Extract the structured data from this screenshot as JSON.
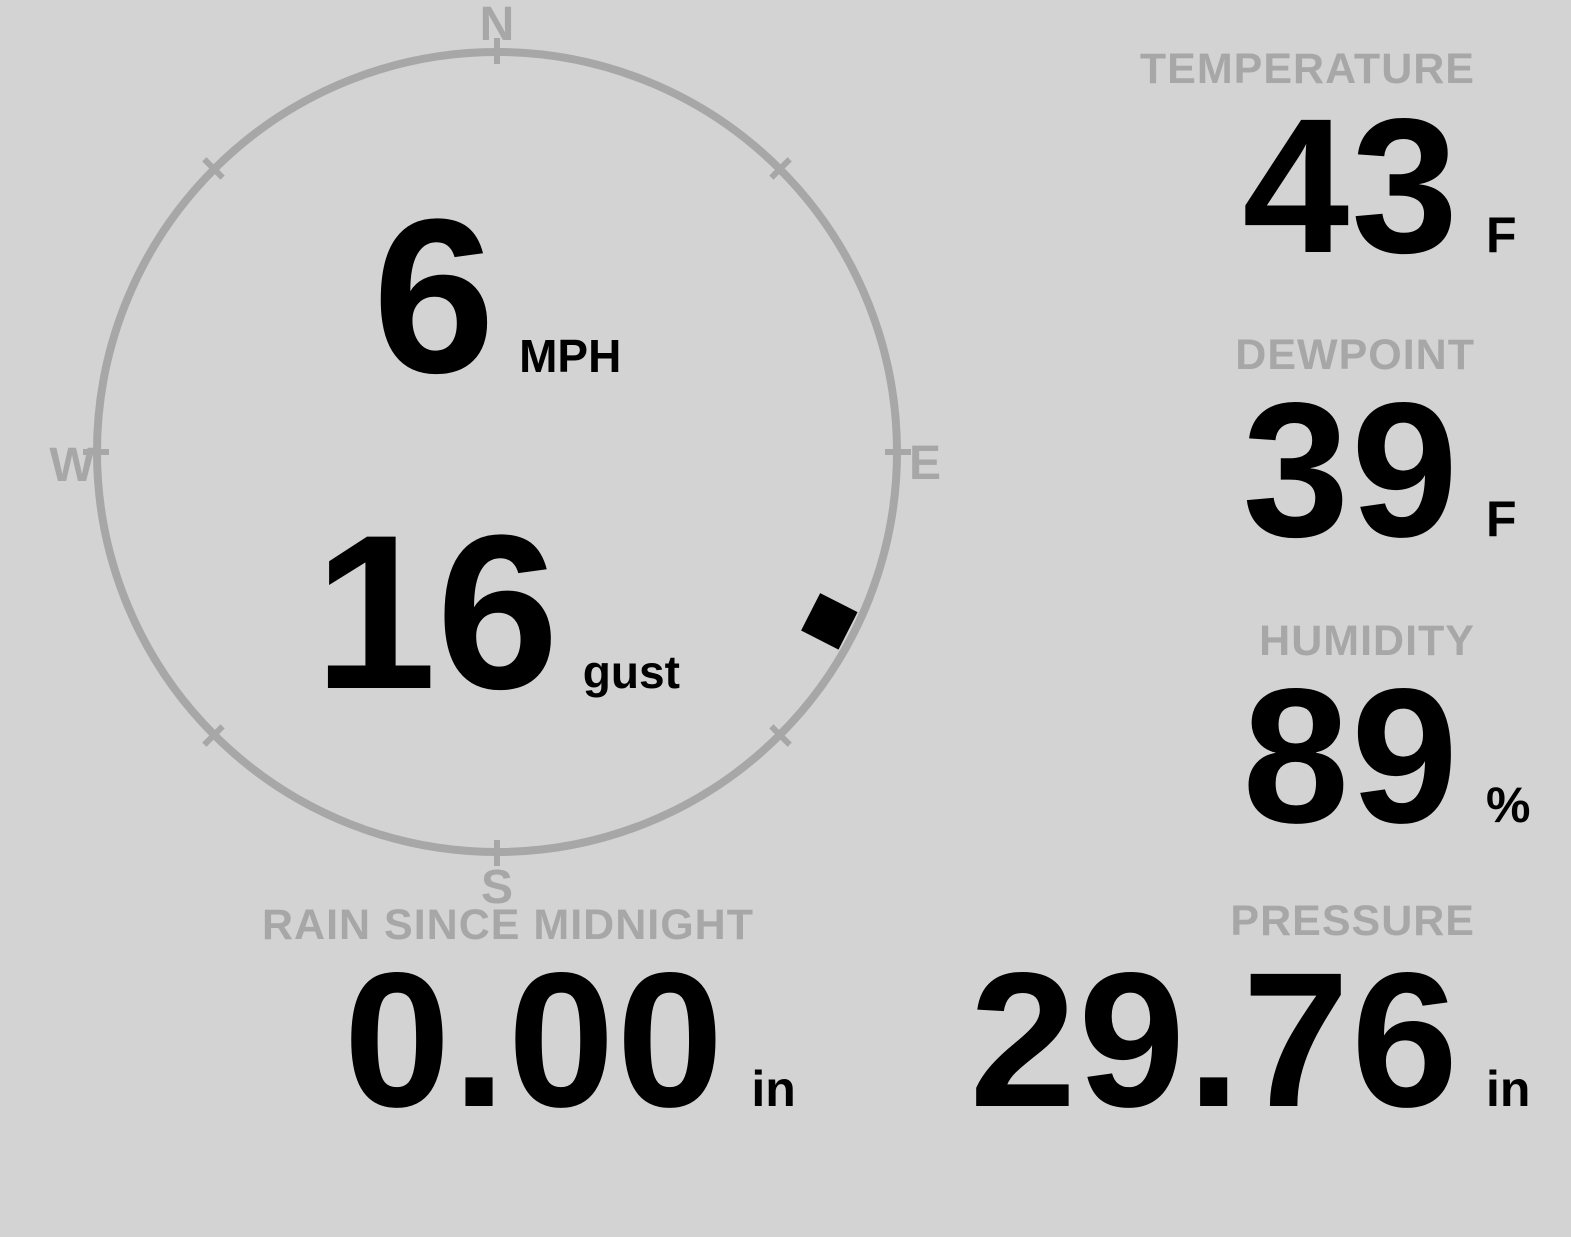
{
  "colors": {
    "background": "#d3d3d3",
    "gauge_gray": "#a7a7a7",
    "value_black": "#000000"
  },
  "wind": {
    "speed": "6",
    "speed_unit": "MPH",
    "gust": "16",
    "gust_unit": "gust",
    "direction_degrees": 117,
    "compass": {
      "north": "N",
      "east": "E",
      "south": "S",
      "west": "W"
    }
  },
  "metrics": {
    "temperature": {
      "label": "TEMPERATURE",
      "value": "43",
      "unit": "F"
    },
    "dewpoint": {
      "label": "DEWPOINT",
      "value": "39",
      "unit": "F"
    },
    "humidity": {
      "label": "HUMIDITY",
      "value": "89",
      "unit": "%"
    },
    "rain": {
      "label": "RAIN SINCE MIDNIGHT",
      "value": "0.00",
      "unit": "in"
    },
    "pressure": {
      "label": "PRESSURE",
      "value": "29.76",
      "unit": "in"
    }
  }
}
